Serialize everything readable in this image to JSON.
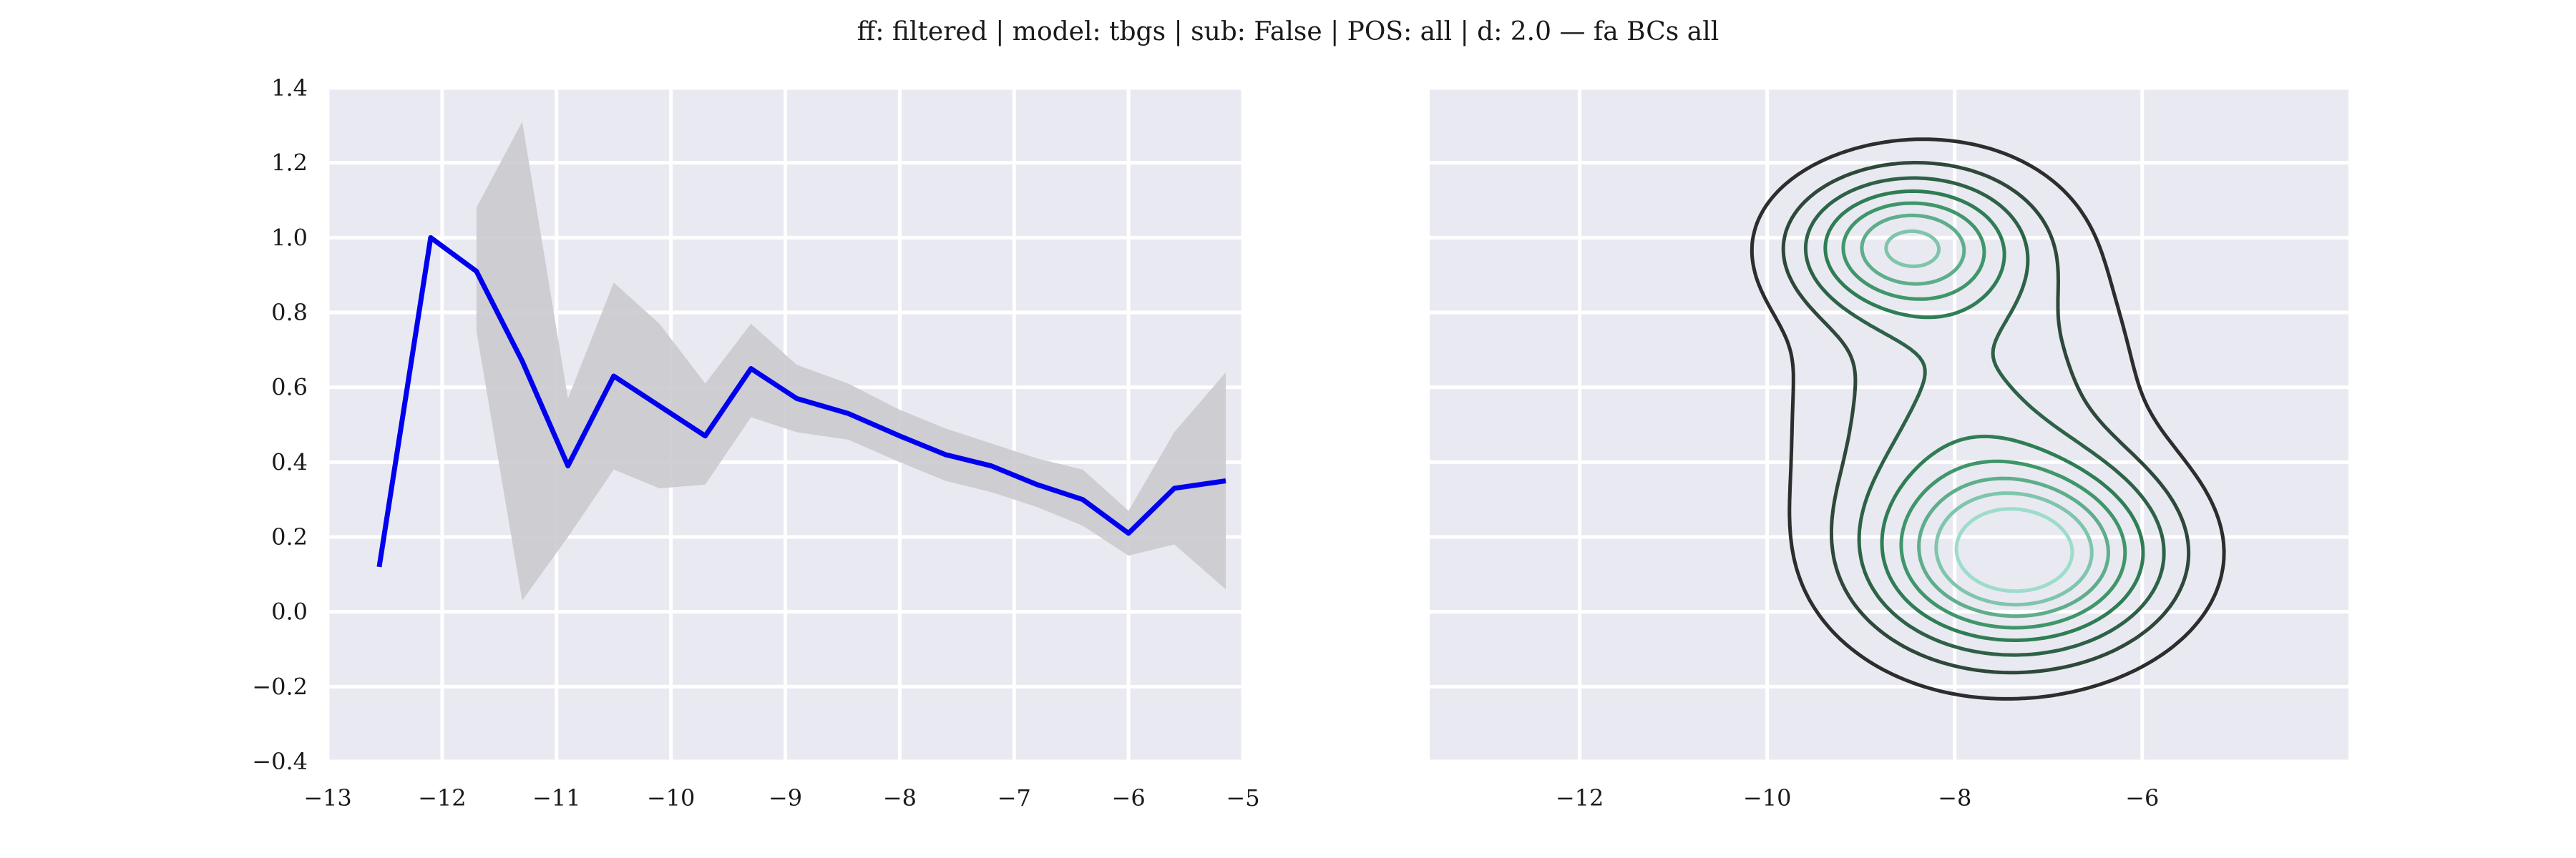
{
  "title": "ff: filtered | model: tbgs | sub: False | POS: all | d: 2.0 — fa BCs all",
  "chart_data": [
    {
      "type": "line",
      "x": [
        -12.55,
        -12.1,
        -11.7,
        -11.3,
        -10.9,
        -10.5,
        -10.1,
        -9.7,
        -9.3,
        -8.9,
        -8.45,
        -8.0,
        -7.6,
        -7.2,
        -6.8,
        -6.4,
        -6.0,
        -5.6,
        -5.15
      ],
      "y": [
        0.12,
        1.0,
        0.91,
        0.67,
        0.39,
        0.63,
        0.55,
        0.47,
        0.65,
        0.57,
        0.53,
        0.47,
        0.42,
        0.39,
        0.34,
        0.3,
        0.21,
        0.33,
        0.35
      ],
      "band_lower": [
        null,
        null,
        0.75,
        0.03,
        0.2,
        0.38,
        0.33,
        0.34,
        0.52,
        0.48,
        0.46,
        0.4,
        0.35,
        0.32,
        0.28,
        0.23,
        0.15,
        0.18,
        0.06
      ],
      "band_upper": [
        null,
        null,
        1.08,
        1.31,
        0.57,
        0.88,
        0.77,
        0.61,
        0.77,
        0.66,
        0.61,
        0.54,
        0.49,
        0.45,
        0.41,
        0.38,
        0.27,
        0.48,
        0.64
      ],
      "xlim": [
        -13,
        -5
      ],
      "ylim": [
        -0.4,
        1.4
      ],
      "xticks": [
        -13,
        -12,
        -11,
        -10,
        -9,
        -8,
        -7,
        -6,
        -5
      ],
      "yticks": [
        -0.4,
        -0.2,
        0.0,
        0.2,
        0.4,
        0.6,
        0.8,
        1.0,
        1.2,
        1.4
      ],
      "xtick_labels": [
        "−13",
        "−12",
        "−11",
        "−10",
        "−9",
        "−8",
        "−7",
        "−6",
        "−5"
      ],
      "ytick_labels": [
        "−0.4",
        "−0.2",
        "0.0",
        "0.2",
        "0.4",
        "0.6",
        "0.8",
        "1.0",
        "1.2",
        "1.4"
      ],
      "line_color": "#0000ee",
      "band_color": "#c8c8cc",
      "grid": true
    },
    {
      "type": "kde_contour",
      "xlim": [
        -13.6,
        -3.8
      ],
      "ylim": [
        -0.4,
        1.4
      ],
      "xticks": [
        -12,
        -10,
        -8,
        -6
      ],
      "yticks": [
        -0.4,
        -0.2,
        0.0,
        0.2,
        0.4,
        0.6,
        0.8,
        1.0,
        1.2,
        1.4
      ],
      "xtick_labels": [
        "−12",
        "−10",
        "−8",
        "−6"
      ],
      "levels": 8,
      "color_outer": "#2d2d2d",
      "color_mid": "#2f8a5a",
      "color_inner": "#9ddccd",
      "grid": true
    }
  ]
}
